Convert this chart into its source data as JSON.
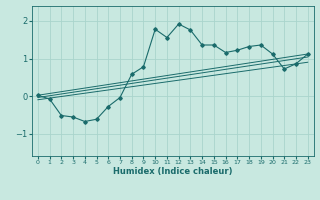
{
  "title": "",
  "xlabel": "Humidex (Indice chaleur)",
  "xlim": [
    -0.5,
    23.5
  ],
  "ylim": [
    -1.6,
    2.4
  ],
  "yticks": [
    -1,
    0,
    1,
    2
  ],
  "xticks": [
    0,
    1,
    2,
    3,
    4,
    5,
    6,
    7,
    8,
    9,
    10,
    11,
    12,
    13,
    14,
    15,
    16,
    17,
    18,
    19,
    20,
    21,
    22,
    23
  ],
  "bg_color": "#c8e8e0",
  "line_color": "#1a6b6b",
  "grid_color": "#aad4cc",
  "line1_x": [
    0,
    1,
    2,
    3,
    4,
    5,
    6,
    7,
    8,
    9,
    10,
    11,
    12,
    13,
    14,
    15,
    16,
    17,
    18,
    19,
    20,
    21,
    22,
    23
  ],
  "line1_y": [
    0.02,
    -0.08,
    -0.52,
    -0.56,
    -0.68,
    -0.62,
    -0.28,
    -0.04,
    0.58,
    0.78,
    1.78,
    1.56,
    1.92,
    1.76,
    1.36,
    1.36,
    1.16,
    1.22,
    1.32,
    1.36,
    1.12,
    0.72,
    0.86,
    1.12
  ],
  "line2_x": [
    0,
    23
  ],
  "line2_y": [
    0.02,
    1.12
  ],
  "line3_x": [
    0,
    23
  ],
  "line3_y": [
    -0.04,
    1.04
  ],
  "line4_x": [
    0,
    23
  ],
  "line4_y": [
    -0.1,
    0.9
  ],
  "figwidth": 3.2,
  "figheight": 2.0,
  "dpi": 100
}
